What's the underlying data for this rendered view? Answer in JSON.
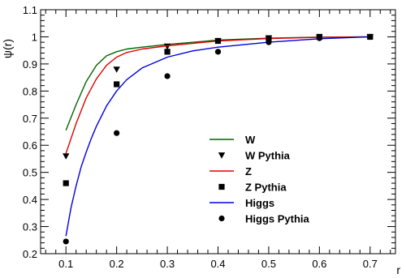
{
  "chart_data": {
    "type": "line",
    "xlabel": "r",
    "ylabel": "ψ(r)",
    "xlim": [
      0.05,
      0.75
    ],
    "ylim": [
      0.2,
      1.1
    ],
    "x_ticks": [
      0.1,
      0.2,
      0.3,
      0.4,
      0.5,
      0.6,
      0.7
    ],
    "x_tick_labels": [
      "0.1",
      "0.2",
      "0.3",
      "0.4",
      "0.5",
      "0.6",
      "0.7"
    ],
    "y_ticks": [
      0.2,
      0.3,
      0.4,
      0.5,
      0.6,
      0.7,
      0.8,
      0.9,
      1.0,
      1.1
    ],
    "y_tick_labels": [
      "0.2",
      "0.3",
      "0.4",
      "0.5",
      "0.6",
      "0.7",
      "0.8",
      "0.9",
      "1",
      "1.1"
    ],
    "grid": false,
    "legend_position": "center-right",
    "series": [
      {
        "name": "W",
        "style": "line",
        "color": "#006400",
        "x": [
          0.1,
          0.12,
          0.14,
          0.16,
          0.18,
          0.2,
          0.22,
          0.25,
          0.3,
          0.4,
          0.5,
          0.6,
          0.7
        ],
        "values": [
          0.655,
          0.75,
          0.835,
          0.895,
          0.93,
          0.945,
          0.955,
          0.962,
          0.972,
          0.988,
          0.995,
          0.999,
          1.0
        ]
      },
      {
        "name": "W Pythia",
        "style": "marker",
        "marker": "triangle-down",
        "color": "#000000",
        "x": [
          0.1,
          0.2,
          0.3,
          0.4,
          0.5,
          0.6,
          0.7
        ],
        "values": [
          0.56,
          0.88,
          0.965,
          0.985,
          0.995,
          0.998,
          1.0
        ]
      },
      {
        "name": "Z",
        "style": "line",
        "color": "#e00000",
        "x": [
          0.1,
          0.12,
          0.14,
          0.16,
          0.18,
          0.2,
          0.22,
          0.25,
          0.3,
          0.4,
          0.5,
          0.6,
          0.7
        ],
        "values": [
          0.57,
          0.68,
          0.775,
          0.845,
          0.895,
          0.925,
          0.942,
          0.955,
          0.967,
          0.985,
          0.994,
          0.998,
          1.0
        ]
      },
      {
        "name": "Z Pythia",
        "style": "marker",
        "marker": "square",
        "color": "#000000",
        "x": [
          0.1,
          0.2,
          0.3,
          0.4,
          0.5,
          0.6,
          0.7
        ],
        "values": [
          0.46,
          0.825,
          0.945,
          0.985,
          0.995,
          1.0,
          1.0
        ]
      },
      {
        "name": "Higgs",
        "style": "line",
        "color": "#0000e0",
        "x": [
          0.1,
          0.11,
          0.12,
          0.13,
          0.14,
          0.15,
          0.16,
          0.18,
          0.2,
          0.22,
          0.25,
          0.3,
          0.35,
          0.4,
          0.5,
          0.6,
          0.7
        ],
        "values": [
          0.265,
          0.37,
          0.45,
          0.52,
          0.575,
          0.625,
          0.67,
          0.745,
          0.8,
          0.842,
          0.885,
          0.925,
          0.948,
          0.962,
          0.98,
          0.993,
          1.0
        ]
      },
      {
        "name": "Higgs Pythia",
        "style": "marker",
        "marker": "circle",
        "color": "#000000",
        "x": [
          0.1,
          0.2,
          0.3,
          0.4,
          0.5,
          0.6,
          0.7
        ],
        "values": [
          0.245,
          0.645,
          0.855,
          0.945,
          0.98,
          0.995,
          1.0
        ]
      }
    ]
  }
}
